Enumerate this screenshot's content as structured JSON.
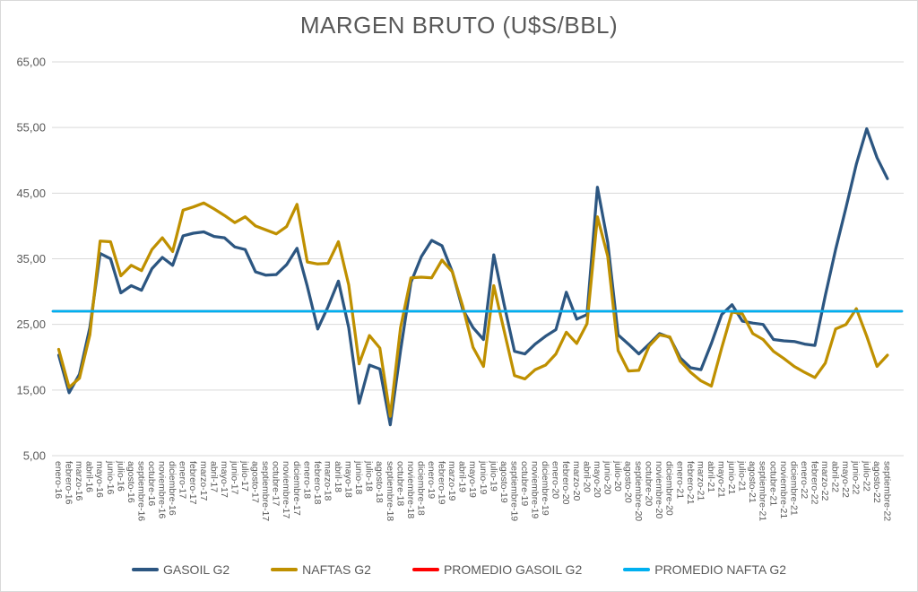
{
  "title": "MARGEN BRUTO (U$S/BBL)",
  "colors": {
    "gasoil": "#2C5681",
    "naftas": "#BF9000",
    "promedio_gasoil": "#FF0000",
    "promedio_nafta": "#00B0F0",
    "grid": "#D9D9D9",
    "text": "#595959"
  },
  "y_axis": {
    "tick_labels": [
      "65,00",
      "55,00",
      "45,00",
      "35,00",
      "25,00",
      "15,00",
      "5,00"
    ],
    "tick_values": [
      65,
      55,
      45,
      35,
      25,
      15,
      5
    ]
  },
  "legend": {
    "items": [
      {
        "label": "GASOIL G2",
        "color": "#2C5681"
      },
      {
        "label": "NAFTAS G2",
        "color": "#BF9000"
      },
      {
        "label": "PROMEDIO GASOIL G2",
        "color": "#FF0000"
      },
      {
        "label": "PROMEDIO NAFTA G2",
        "color": "#00B0F0"
      }
    ]
  },
  "chart_data": {
    "type": "line",
    "title": "MARGEN BRUTO (U$S/BBL)",
    "xlabel": "",
    "ylabel": "",
    "ylim": [
      5,
      65
    ],
    "grid": "horizontal",
    "legend_position": "bottom",
    "categories": [
      "enero-16",
      "febrero-16",
      "marzo-16",
      "abril-16",
      "mayo-16",
      "junio-16",
      "julio-16",
      "agosto-16",
      "septiembre-16",
      "octubre-16",
      "noviembre-16",
      "diciembre-16",
      "enero-17",
      "febrero-17",
      "marzo-17",
      "abril-17",
      "mayo-17",
      "junio-17",
      "julio-17",
      "agosto-17",
      "septiembre-17",
      "octubre-17",
      "noviembre-17",
      "diciembre-17",
      "enero-18",
      "febrero-18",
      "marzo-18",
      "abril-18",
      "mayo-18",
      "junio-18",
      "julio-18",
      "agosto-18",
      "septiembre-18",
      "octubre-18",
      "noviembre-18",
      "diciembre-18",
      "enero-19",
      "febrero-19",
      "marzo-19",
      "abril-19",
      "mayo-19",
      "junio-19",
      "julio-19",
      "agosto-19",
      "septiembre-19",
      "octubre-19",
      "noviembre-19",
      "diciembre-19",
      "enero-20",
      "febrero-20",
      "marzo-20",
      "abril-20",
      "mayo-20",
      "junio-20",
      "julio-20",
      "agosto-20",
      "septiembre-20",
      "octubre-20",
      "noviembre-20",
      "diciembre-20",
      "enero-21",
      "febrero-21",
      "marzo-21",
      "abril-21",
      "mayo-21",
      "junio-21",
      "julio-21",
      "agosto-21",
      "septiembre-21",
      "octubre-21",
      "noviembre-21",
      "diciembre-21",
      "enero-22",
      "febrero-22",
      "marzo-22",
      "abril-22",
      "mayo-22",
      "junio-22",
      "julio-22",
      "agosto-22",
      "septiembre-22"
    ],
    "series": [
      {
        "name": "GASOIL G2",
        "color": "#2C5681",
        "width": 3.25,
        "values": [
          20.3,
          14.6,
          17.4,
          24.5,
          35.8,
          35.0,
          29.8,
          30.9,
          30.2,
          33.5,
          35.2,
          34.0,
          38.5,
          38.9,
          39.1,
          38.4,
          38.2,
          36.8,
          36.4,
          33.0,
          32.5,
          32.6,
          34.1,
          36.6,
          30.8,
          24.3,
          27.7,
          31.6,
          24.5,
          13.0,
          18.8,
          18.2,
          9.7,
          21.0,
          31.4,
          35.3,
          37.8,
          37.0,
          33.0,
          27.3,
          24.5,
          22.7,
          35.6,
          28.0,
          20.9,
          20.5,
          22.0,
          23.2,
          24.2,
          29.9,
          25.8,
          26.5,
          45.9,
          37.5,
          23.4,
          22.0,
          20.5,
          22.0,
          23.6,
          23.0,
          19.9,
          18.4,
          18.1,
          22.1,
          26.5,
          28.0,
          25.5,
          25.2,
          25.0,
          22.7,
          22.5,
          22.4,
          22.0,
          21.8,
          29.4,
          36.4,
          42.8,
          49.4,
          54.8,
          50.4,
          47.2
        ]
      },
      {
        "name": "NAFTAS G2",
        "color": "#BF9000",
        "width": 3.25,
        "values": [
          21.2,
          15.4,
          16.8,
          23.4,
          37.7,
          37.6,
          32.4,
          34.0,
          33.2,
          36.4,
          38.2,
          36.1,
          42.4,
          42.9,
          43.5,
          42.6,
          41.6,
          40.5,
          41.4,
          40.0,
          39.4,
          38.8,
          39.9,
          43.3,
          34.5,
          34.2,
          34.3,
          37.6,
          31.0,
          19.0,
          23.3,
          21.4,
          11.0,
          24.5,
          32.1,
          32.2,
          32.1,
          34.8,
          33.0,
          27.8,
          21.5,
          18.6,
          30.9,
          24.0,
          17.2,
          16.7,
          18.1,
          18.8,
          20.5,
          23.8,
          22.1,
          25.1,
          41.4,
          35.4,
          21.0,
          17.9,
          18.0,
          21.7,
          23.4,
          23.1,
          19.4,
          17.7,
          16.4,
          15.6,
          21.4,
          26.9,
          26.6,
          23.6,
          22.7,
          20.9,
          19.8,
          18.6,
          17.7,
          16.9,
          19.1,
          24.3,
          25.0,
          27.4,
          23.2,
          18.6,
          20.3
        ]
      },
      {
        "name": "PROMEDIO GASOIL G2",
        "color": "#FF0000",
        "width": 2.5,
        "constant": 27.0
      },
      {
        "name": "PROMEDIO NAFTA G2",
        "color": "#00B0F0",
        "width": 2.75,
        "constant": 27.0
      }
    ]
  }
}
